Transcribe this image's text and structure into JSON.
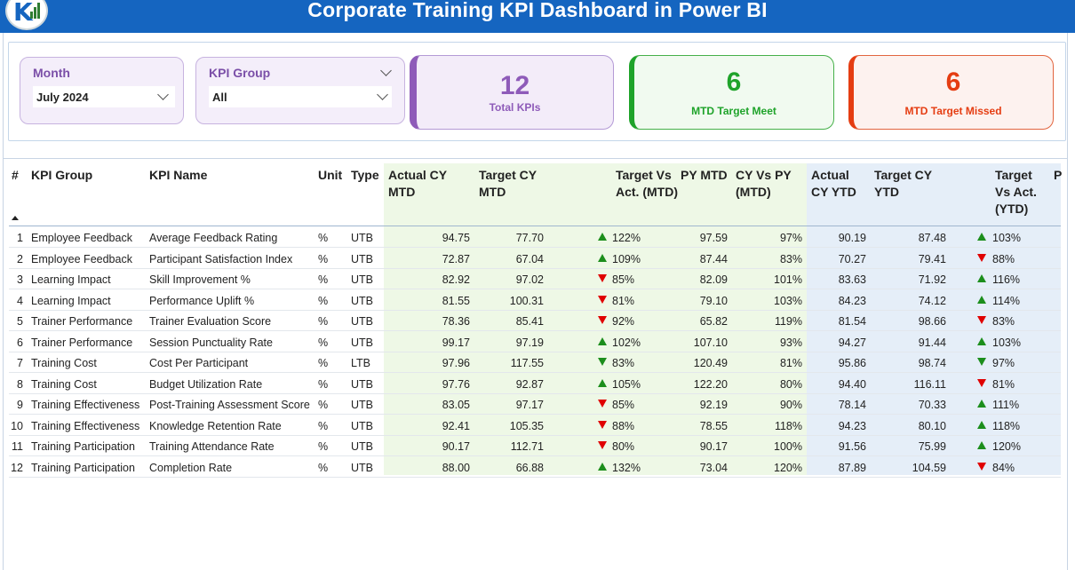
{
  "header": {
    "title": "Corporate Training KPI Dashboard in Power BI"
  },
  "slicers": {
    "month": {
      "label": "Month",
      "value": "July 2024"
    },
    "kpi_group": {
      "label": "KPI Group",
      "value": "All"
    }
  },
  "cards": {
    "total": {
      "value": "12",
      "label": "Total KPIs"
    },
    "meet": {
      "value": "6",
      "label": "MTD Target Meet"
    },
    "missed": {
      "value": "6",
      "label": "MTD Target Missed"
    }
  },
  "colors": {
    "header_blue": "#1565c0",
    "purple": "#8e5bb9",
    "green": "#1fa32a",
    "red": "#e53d12"
  },
  "table": {
    "headers": {
      "num": "#",
      "group": "KPI Group",
      "name": "KPI Name",
      "unit": "Unit",
      "type": "Type",
      "actual_mtd": "Actual CY MTD",
      "target_mtd": "Target CY MTD",
      "tva_mtd": "Target Vs Act. (MTD)",
      "py_mtd": "PY MTD",
      "cyvspy_mtd": "CY Vs PY (MTD)",
      "actual_ytd": "Actual CY YTD",
      "target_ytd": "Target CY YTD",
      "tva_ytd": "Target Vs Act. (YTD)",
      "cut": "P"
    },
    "rows": [
      {
        "num": "1",
        "group": "Employee Feedback",
        "name": "Average Feedback Rating",
        "unit": "%",
        "type": "UTB",
        "actual_mtd": "94.75",
        "target_mtd": "77.70",
        "mtd_dir": "up",
        "tva_mtd": "122%",
        "py_mtd": "97.59",
        "cyvspy_mtd": "97%",
        "actual_ytd": "90.19",
        "target_ytd": "87.48",
        "ytd_dir": "up",
        "tva_ytd": "103%"
      },
      {
        "num": "2",
        "group": "Employee Feedback",
        "name": "Participant Satisfaction Index",
        "unit": "%",
        "type": "UTB",
        "actual_mtd": "72.87",
        "target_mtd": "67.04",
        "mtd_dir": "up",
        "tva_mtd": "109%",
        "py_mtd": "87.44",
        "cyvspy_mtd": "83%",
        "actual_ytd": "70.27",
        "target_ytd": "79.41",
        "ytd_dir": "down",
        "tva_ytd": "88%"
      },
      {
        "num": "3",
        "group": "Learning Impact",
        "name": "Skill Improvement %",
        "unit": "%",
        "type": "UTB",
        "actual_mtd": "82.92",
        "target_mtd": "97.02",
        "mtd_dir": "down",
        "tva_mtd": "85%",
        "py_mtd": "82.09",
        "cyvspy_mtd": "101%",
        "actual_ytd": "83.63",
        "target_ytd": "71.92",
        "ytd_dir": "up",
        "tva_ytd": "116%"
      },
      {
        "num": "4",
        "group": "Learning Impact",
        "name": "Performance Uplift %",
        "unit": "%",
        "type": "UTB",
        "actual_mtd": "81.55",
        "target_mtd": "100.31",
        "mtd_dir": "down",
        "tva_mtd": "81%",
        "py_mtd": "79.10",
        "cyvspy_mtd": "103%",
        "actual_ytd": "84.23",
        "target_ytd": "74.12",
        "ytd_dir": "up",
        "tva_ytd": "114%"
      },
      {
        "num": "5",
        "group": "Trainer Performance",
        "name": "Trainer Evaluation Score",
        "unit": "%",
        "type": "UTB",
        "actual_mtd": "78.36",
        "target_mtd": "85.41",
        "mtd_dir": "down",
        "tva_mtd": "92%",
        "py_mtd": "65.82",
        "cyvspy_mtd": "119%",
        "actual_ytd": "81.54",
        "target_ytd": "98.66",
        "ytd_dir": "down",
        "tva_ytd": "83%"
      },
      {
        "num": "6",
        "group": "Trainer Performance",
        "name": "Session Punctuality Rate",
        "unit": "%",
        "type": "UTB",
        "actual_mtd": "99.17",
        "target_mtd": "97.19",
        "mtd_dir": "up",
        "tva_mtd": "102%",
        "py_mtd": "107.10",
        "cyvspy_mtd": "93%",
        "actual_ytd": "94.27",
        "target_ytd": "91.44",
        "ytd_dir": "up",
        "tva_ytd": "103%"
      },
      {
        "num": "7",
        "group": "Training Cost",
        "name": "Cost Per Participant",
        "unit": "%",
        "type": "LTB",
        "actual_mtd": "97.96",
        "target_mtd": "117.55",
        "mtd_dir": "down-green",
        "tva_mtd": "83%",
        "py_mtd": "120.49",
        "cyvspy_mtd": "81%",
        "actual_ytd": "95.86",
        "target_ytd": "98.74",
        "ytd_dir": "down-green",
        "tva_ytd": "97%"
      },
      {
        "num": "8",
        "group": "Training Cost",
        "name": "Budget Utilization Rate",
        "unit": "%",
        "type": "UTB",
        "actual_mtd": "97.76",
        "target_mtd": "92.87",
        "mtd_dir": "up",
        "tva_mtd": "105%",
        "py_mtd": "122.20",
        "cyvspy_mtd": "80%",
        "actual_ytd": "94.40",
        "target_ytd": "116.11",
        "ytd_dir": "down",
        "tva_ytd": "81%"
      },
      {
        "num": "9",
        "group": "Training Effectiveness",
        "name": "Post-Training Assessment Score",
        "unit": "%",
        "type": "UTB",
        "actual_mtd": "83.05",
        "target_mtd": "97.17",
        "mtd_dir": "down",
        "tva_mtd": "85%",
        "py_mtd": "92.19",
        "cyvspy_mtd": "90%",
        "actual_ytd": "78.14",
        "target_ytd": "70.33",
        "ytd_dir": "up",
        "tva_ytd": "111%"
      },
      {
        "num": "10",
        "group": "Training Effectiveness",
        "name": "Knowledge Retention Rate",
        "unit": "%",
        "type": "UTB",
        "actual_mtd": "92.41",
        "target_mtd": "105.35",
        "mtd_dir": "down",
        "tva_mtd": "88%",
        "py_mtd": "78.55",
        "cyvspy_mtd": "118%",
        "actual_ytd": "94.23",
        "target_ytd": "80.10",
        "ytd_dir": "up",
        "tva_ytd": "118%"
      },
      {
        "num": "11",
        "group": "Training Participation",
        "name": "Training Attendance Rate",
        "unit": "%",
        "type": "UTB",
        "actual_mtd": "90.17",
        "target_mtd": "112.71",
        "mtd_dir": "down",
        "tva_mtd": "80%",
        "py_mtd": "90.17",
        "cyvspy_mtd": "100%",
        "actual_ytd": "91.56",
        "target_ytd": "75.99",
        "ytd_dir": "up",
        "tva_ytd": "120%"
      },
      {
        "num": "12",
        "group": "Training Participation",
        "name": "Completion Rate",
        "unit": "%",
        "type": "UTB",
        "actual_mtd": "88.00",
        "target_mtd": "66.88",
        "mtd_dir": "up",
        "tva_mtd": "132%",
        "py_mtd": "73.04",
        "cyvspy_mtd": "120%",
        "actual_ytd": "87.89",
        "target_ytd": "104.59",
        "ytd_dir": "down",
        "tva_ytd": "84%"
      }
    ]
  }
}
